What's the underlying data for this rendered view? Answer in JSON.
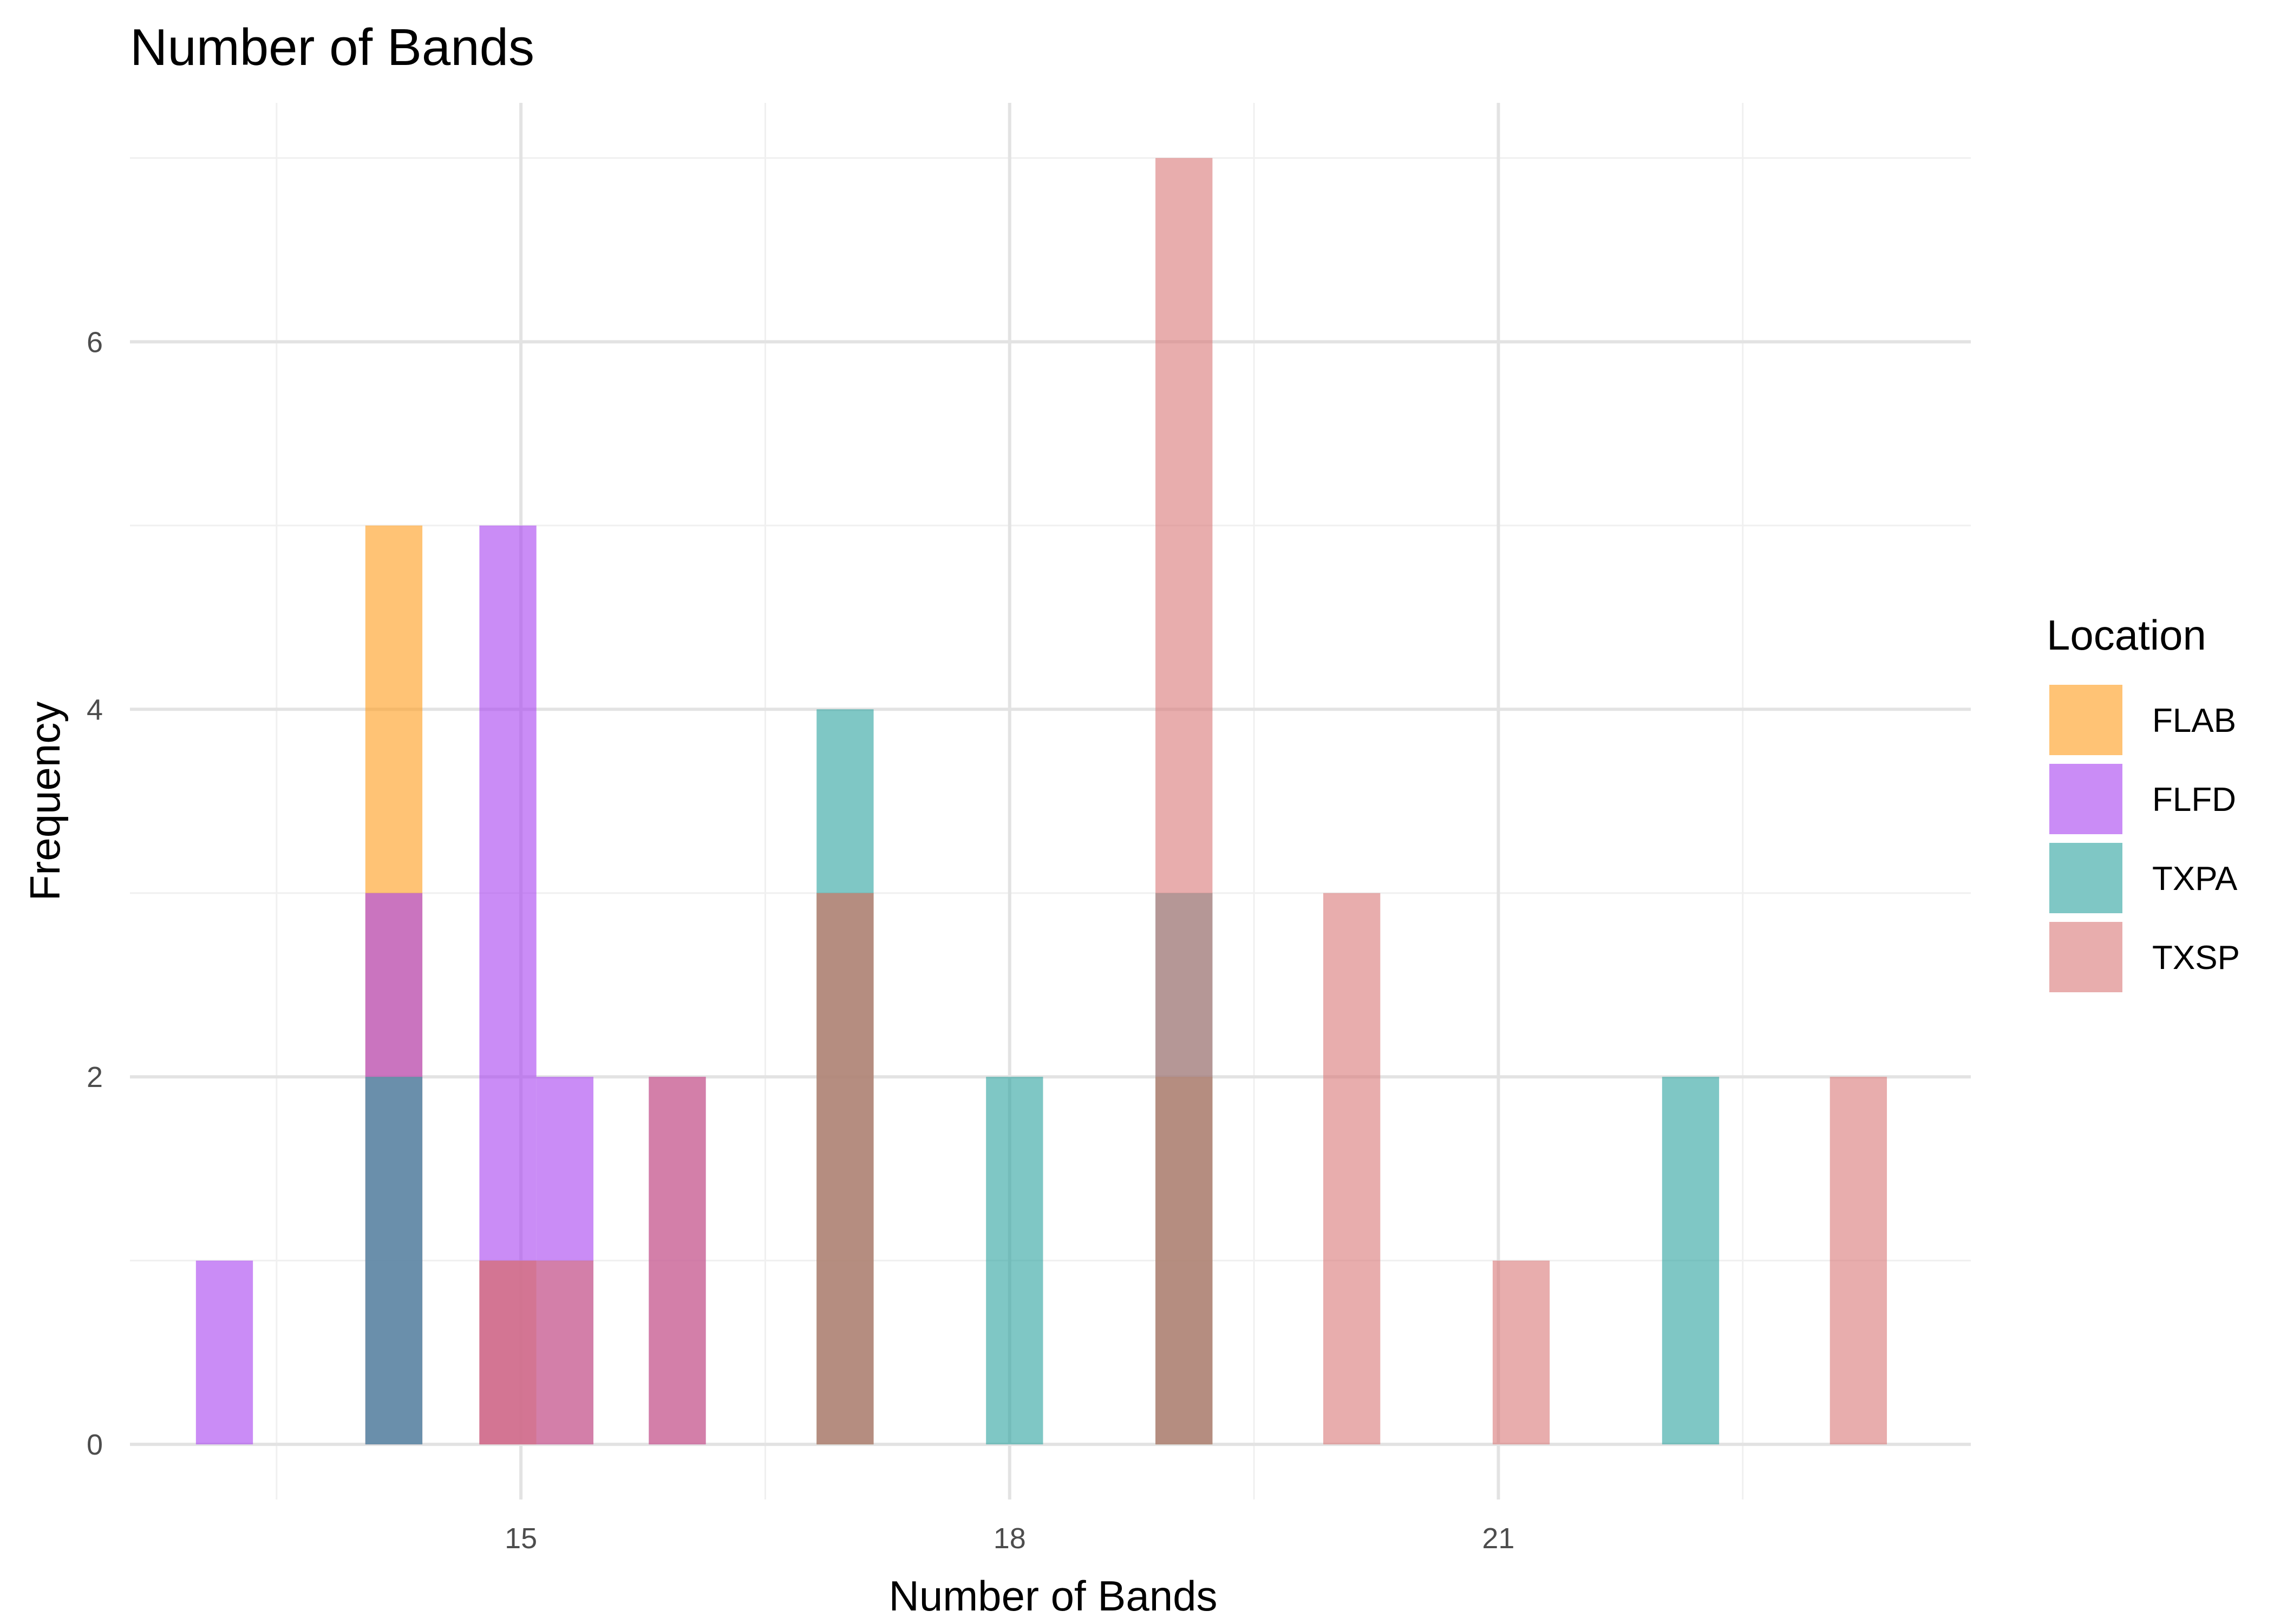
{
  "chart_data": {
    "type": "bar",
    "title": "Number of Bands",
    "xlabel": "Number of Bands",
    "ylabel": "Frequency",
    "xlim": [
      12.6,
      23.9
    ],
    "ylim": [
      -0.3,
      7.3
    ],
    "x_ticks": [
      15,
      18,
      21
    ],
    "y_ticks": [
      0,
      2,
      4,
      6
    ],
    "x_minor": [
      13.5,
      16.5,
      19.5,
      22.5
    ],
    "y_minor": [
      1,
      3,
      5,
      7
    ],
    "bin_width": 0.35,
    "legend": {
      "title": "Location",
      "position": "right"
    },
    "bar_opacity": 0.6,
    "series": [
      {
        "name": "FLAB",
        "color": "#ff9b19",
        "x": [
          14.22,
          14.92,
          16.99,
          19.07
        ],
        "values": [
          5,
          1,
          3,
          2
        ]
      },
      {
        "name": "FLFD",
        "color": "#a63ff0",
        "x": [
          13.18,
          14.22,
          14.92,
          15.27,
          15.96
        ],
        "values": [
          1,
          3,
          5,
          2,
          2
        ]
      },
      {
        "name": "TXPA",
        "color": "#2aa19e",
        "x": [
          14.22,
          16.99,
          18.03,
          19.07,
          22.18
        ],
        "values": [
          2,
          4,
          2,
          3,
          2
        ]
      },
      {
        "name": "TXSP",
        "color": "#d87676",
        "x": [
          14.92,
          15.27,
          15.96,
          16.99,
          19.07,
          20.1,
          21.14,
          23.21
        ],
        "values": [
          1,
          1,
          2,
          3,
          7,
          3,
          1,
          2
        ]
      }
    ]
  }
}
